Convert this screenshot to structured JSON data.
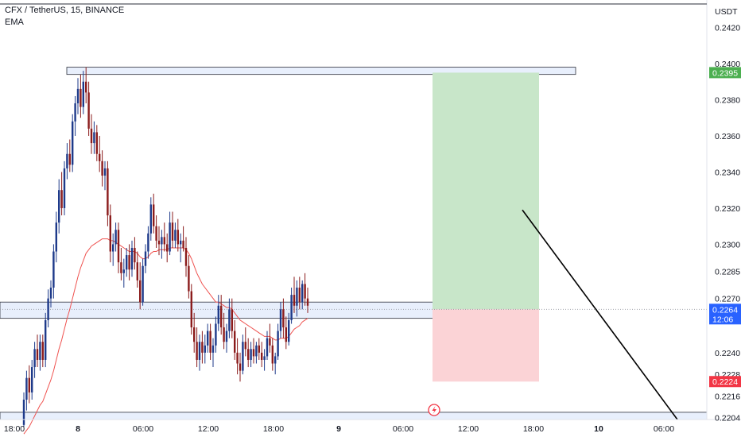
{
  "header": {
    "title": "CFX / TetherUS, 15, BINANCE",
    "indicator": "EMA",
    "currency": "USDT"
  },
  "colors": {
    "up": "#1e3a8a",
    "down": "#8b1c1c",
    "ema": "#ef5350",
    "zone_fill": "#e8effc",
    "zone_stroke": "#2a2e39",
    "profit": "#c8e6c9",
    "loss": "#fbd3d6",
    "price_badge": "#2962ff",
    "target_badge": "#4caf50",
    "stop_badge": "#f23645",
    "trendline": "#000000"
  },
  "chart_data": {
    "type": "candlestick",
    "y_axis": {
      "ylim": [
        0.2203,
        0.2433
      ],
      "ticks": [
        "0.2204",
        "0.2216",
        "0.2228",
        "0.2240",
        "0.2260",
        "0.2270",
        "0.2285",
        "0.2300",
        "0.2320",
        "0.2340",
        "0.2360",
        "0.2380",
        "0.2400",
        "0.2420"
      ],
      "tick_values": [
        0.2204,
        0.2216,
        0.2228,
        0.224,
        0.226,
        0.227,
        0.2285,
        0.23,
        0.232,
        0.234,
        0.236,
        0.238,
        0.24,
        0.242
      ]
    },
    "x_axis": {
      "ticks": [
        {
          "label": "18:00",
          "bold": false,
          "bar": 0
        },
        {
          "label": "8",
          "bold": true,
          "bar": 24
        },
        {
          "label": "06:00",
          "bold": false,
          "bar": 48
        },
        {
          "label": "12:00",
          "bold": false,
          "bar": 72
        },
        {
          "label": "18:00",
          "bold": false,
          "bar": 96
        },
        {
          "label": "9",
          "bold": true,
          "bar": 120
        },
        {
          "label": "06:00",
          "bold": false,
          "bar": 144
        },
        {
          "label": "12:00",
          "bold": false,
          "bar": 168
        },
        {
          "label": "18:00",
          "bold": false,
          "bar": 192
        },
        {
          "label": "10",
          "bold": true,
          "bar": 216
        },
        {
          "label": "06:00",
          "bold": false,
          "bar": 240
        }
      ]
    },
    "candles": [
      [
        0.22,
        0.2218,
        0.2199,
        0.2214
      ],
      [
        0.2214,
        0.223,
        0.2208,
        0.2226
      ],
      [
        0.2226,
        0.2233,
        0.2212,
        0.2218
      ],
      [
        0.2218,
        0.2236,
        0.2214,
        0.2232
      ],
      [
        0.2232,
        0.2246,
        0.2226,
        0.2242
      ],
      [
        0.2242,
        0.225,
        0.2232,
        0.2236
      ],
      [
        0.2236,
        0.225,
        0.223,
        0.2246
      ],
      [
        0.2246,
        0.225,
        0.2232,
        0.2236
      ],
      [
        0.2236,
        0.2262,
        0.2232,
        0.2258
      ],
      [
        0.2258,
        0.2275,
        0.2254,
        0.227
      ],
      [
        0.227,
        0.228,
        0.2265,
        0.2276
      ],
      [
        0.2276,
        0.23,
        0.227,
        0.2296
      ],
      [
        0.2296,
        0.2318,
        0.229,
        0.2312
      ],
      [
        0.2312,
        0.2336,
        0.2306,
        0.233
      ],
      [
        0.233,
        0.234,
        0.2316,
        0.232
      ],
      [
        0.232,
        0.2346,
        0.2316,
        0.2342
      ],
      [
        0.2342,
        0.2356,
        0.2336,
        0.235
      ],
      [
        0.235,
        0.2358,
        0.234,
        0.2344
      ],
      [
        0.2344,
        0.2372,
        0.234,
        0.2368
      ],
      [
        0.2368,
        0.2382,
        0.236,
        0.2378
      ],
      [
        0.2378,
        0.2392,
        0.2372,
        0.2386
      ],
      [
        0.2386,
        0.2394,
        0.237,
        0.2376
      ],
      [
        0.2376,
        0.2396,
        0.2372,
        0.239
      ],
      [
        0.239,
        0.2398,
        0.2378,
        0.2384
      ],
      [
        0.2384,
        0.239,
        0.236,
        0.2364
      ],
      [
        0.2364,
        0.2372,
        0.235,
        0.2356
      ],
      [
        0.2356,
        0.2368,
        0.235,
        0.2362
      ],
      [
        0.2362,
        0.2366,
        0.2346,
        0.235
      ],
      [
        0.235,
        0.236,
        0.234,
        0.2346
      ],
      [
        0.2346,
        0.2352,
        0.2332,
        0.2338
      ],
      [
        0.2338,
        0.2346,
        0.233,
        0.2342
      ],
      [
        0.2342,
        0.2346,
        0.231,
        0.2316
      ],
      [
        0.2316,
        0.2322,
        0.229,
        0.2296
      ],
      [
        0.2296,
        0.2306,
        0.2288,
        0.23
      ],
      [
        0.23,
        0.2312,
        0.2296,
        0.2308
      ],
      [
        0.2308,
        0.2312,
        0.2284,
        0.229
      ],
      [
        0.229,
        0.2298,
        0.228,
        0.2284
      ],
      [
        0.2284,
        0.2292,
        0.2276,
        0.2286
      ],
      [
        0.2286,
        0.2298,
        0.2282,
        0.2294
      ],
      [
        0.2294,
        0.23,
        0.228,
        0.2286
      ],
      [
        0.2286,
        0.2302,
        0.2282,
        0.2298
      ],
      [
        0.2298,
        0.2304,
        0.2286,
        0.229
      ],
      [
        0.229,
        0.2296,
        0.2276,
        0.228
      ],
      [
        0.228,
        0.229,
        0.2264,
        0.2268
      ],
      [
        0.2268,
        0.2292,
        0.2266,
        0.2288
      ],
      [
        0.2288,
        0.23,
        0.2284,
        0.2296
      ],
      [
        0.2296,
        0.231,
        0.2292,
        0.2306
      ],
      [
        0.2306,
        0.2326,
        0.2302,
        0.2322
      ],
      [
        0.2322,
        0.2328,
        0.2306,
        0.231
      ],
      [
        0.231,
        0.2316,
        0.2298,
        0.2302
      ],
      [
        0.2302,
        0.231,
        0.2294,
        0.23
      ],
      [
        0.23,
        0.2308,
        0.2292,
        0.2304
      ],
      [
        0.2304,
        0.2312,
        0.2296,
        0.23
      ],
      [
        0.23,
        0.2306,
        0.229,
        0.2296
      ],
      [
        0.2296,
        0.2318,
        0.2294,
        0.2312
      ],
      [
        0.2312,
        0.2318,
        0.2298,
        0.2302
      ],
      [
        0.2302,
        0.2312,
        0.2298,
        0.2308
      ],
      [
        0.2308,
        0.2314,
        0.2296,
        0.23
      ],
      [
        0.23,
        0.2306,
        0.229,
        0.2302
      ],
      [
        0.2302,
        0.231,
        0.2296,
        0.2298
      ],
      [
        0.2298,
        0.2304,
        0.2282,
        0.2288
      ],
      [
        0.2288,
        0.2294,
        0.227,
        0.2274
      ],
      [
        0.2274,
        0.2278,
        0.225,
        0.2254
      ],
      [
        0.2254,
        0.2262,
        0.224,
        0.2246
      ],
      [
        0.2246,
        0.2254,
        0.2232,
        0.2236
      ],
      [
        0.2236,
        0.225,
        0.223,
        0.2246
      ],
      [
        0.2246,
        0.2252,
        0.2234,
        0.224
      ],
      [
        0.224,
        0.225,
        0.2234,
        0.2244
      ],
      [
        0.2244,
        0.2256,
        0.224,
        0.2252
      ],
      [
        0.2252,
        0.2256,
        0.2236,
        0.224
      ],
      [
        0.224,
        0.2248,
        0.2232,
        0.2244
      ],
      [
        0.2244,
        0.226,
        0.224,
        0.2256
      ],
      [
        0.2256,
        0.2272,
        0.2252,
        0.2266
      ],
      [
        0.2266,
        0.2272,
        0.225,
        0.2254
      ],
      [
        0.2254,
        0.2262,
        0.2242,
        0.2246
      ],
      [
        0.2246,
        0.2256,
        0.224,
        0.2252
      ],
      [
        0.2252,
        0.227,
        0.2248,
        0.2264
      ],
      [
        0.2264,
        0.227,
        0.2248,
        0.2252
      ],
      [
        0.2252,
        0.2258,
        0.2236,
        0.224
      ],
      [
        0.224,
        0.2248,
        0.2228,
        0.2234
      ],
      [
        0.2234,
        0.224,
        0.2224,
        0.223
      ],
      [
        0.223,
        0.225,
        0.2228,
        0.2246
      ],
      [
        0.2246,
        0.2254,
        0.2238,
        0.2242
      ],
      [
        0.2242,
        0.2248,
        0.2232,
        0.2236
      ],
      [
        0.2236,
        0.2246,
        0.2232,
        0.2242
      ],
      [
        0.2242,
        0.2248,
        0.2234,
        0.2238
      ],
      [
        0.2238,
        0.2246,
        0.2234,
        0.2244
      ],
      [
        0.2244,
        0.2248,
        0.2236,
        0.224
      ],
      [
        0.224,
        0.2246,
        0.2232,
        0.2236
      ],
      [
        0.2236,
        0.2242,
        0.223,
        0.2238
      ],
      [
        0.2238,
        0.2252,
        0.2236,
        0.2248
      ],
      [
        0.2248,
        0.2256,
        0.224,
        0.2244
      ],
      [
        0.2244,
        0.2248,
        0.223,
        0.2234
      ],
      [
        0.2234,
        0.224,
        0.2228,
        0.2238
      ],
      [
        0.2238,
        0.2256,
        0.2236,
        0.2252
      ],
      [
        0.2252,
        0.2268,
        0.2248,
        0.2264
      ],
      [
        0.2264,
        0.227,
        0.2248,
        0.2254
      ],
      [
        0.2254,
        0.226,
        0.2242,
        0.2246
      ],
      [
        0.2246,
        0.2262,
        0.2244,
        0.2258
      ],
      [
        0.2258,
        0.2276,
        0.2256,
        0.2272
      ],
      [
        0.2272,
        0.2282,
        0.2262,
        0.2266
      ],
      [
        0.2266,
        0.228,
        0.226,
        0.2276
      ],
      [
        0.2276,
        0.2282,
        0.2264,
        0.2268
      ],
      [
        0.2268,
        0.228,
        0.2264,
        0.2278
      ],
      [
        0.2278,
        0.2284,
        0.2266,
        0.227
      ],
      [
        0.227,
        0.2276,
        0.2262,
        0.2266
      ]
    ],
    "ema_values": [
      0.2195,
      0.2197,
      0.2199,
      0.2202,
      0.2205,
      0.2208,
      0.2211,
      0.2213,
      0.2217,
      0.2221,
      0.2225,
      0.223,
      0.2236,
      0.2242,
      0.2247,
      0.2253,
      0.2259,
      0.2264,
      0.227,
      0.2276,
      0.2282,
      0.2287,
      0.2291,
      0.2295,
      0.2297,
      0.2299,
      0.23,
      0.2301,
      0.2302,
      0.2303,
      0.2303,
      0.2303,
      0.2302,
      0.2302,
      0.2301,
      0.23,
      0.2299,
      0.2298,
      0.2297,
      0.2296,
      0.2296,
      0.2296,
      0.2295,
      0.2293,
      0.2292,
      0.2292,
      0.2293,
      0.2295,
      0.2296,
      0.2296,
      0.2297,
      0.2297,
      0.2297,
      0.2297,
      0.2298,
      0.2298,
      0.2298,
      0.2298,
      0.2298,
      0.2298,
      0.2297,
      0.2295,
      0.2292,
      0.2288,
      0.2284,
      0.2281,
      0.2278,
      0.2276,
      0.2274,
      0.2272,
      0.227,
      0.2268,
      0.2268,
      0.2267,
      0.2266,
      0.2265,
      0.2265,
      0.2264,
      0.2262,
      0.226,
      0.2258,
      0.2257,
      0.2256,
      0.2255,
      0.2254,
      0.2253,
      0.2252,
      0.2251,
      0.225,
      0.2249,
      0.2249,
      0.2249,
      0.2248,
      0.2247,
      0.2247,
      0.2248,
      0.2248,
      0.2248,
      0.2249,
      0.2251,
      0.2253,
      0.2254,
      0.2255,
      0.2257,
      0.2258,
      0.2259
    ],
    "support_zone": {
      "top": 0.2268,
      "bottom": 0.2259
    },
    "resistance_zone": {
      "top": 0.2398,
      "bottom": 0.2394,
      "start_bar": 20,
      "end_bar": 195
    },
    "lower_zone_top": 0.2207,
    "position": {
      "entry": 0.2264,
      "target": 0.2395,
      "stop": 0.2224,
      "start_bar": 130,
      "end_bar": 164
    },
    "trendline": {
      "start_bar": 160,
      "start_price": 0.2319,
      "end_bar": 208,
      "end_price": 0.2203
    },
    "current": {
      "price": "0.2264",
      "countdown": "12:06"
    },
    "target_label": "0.2395",
    "stop_label": "0.2224"
  }
}
